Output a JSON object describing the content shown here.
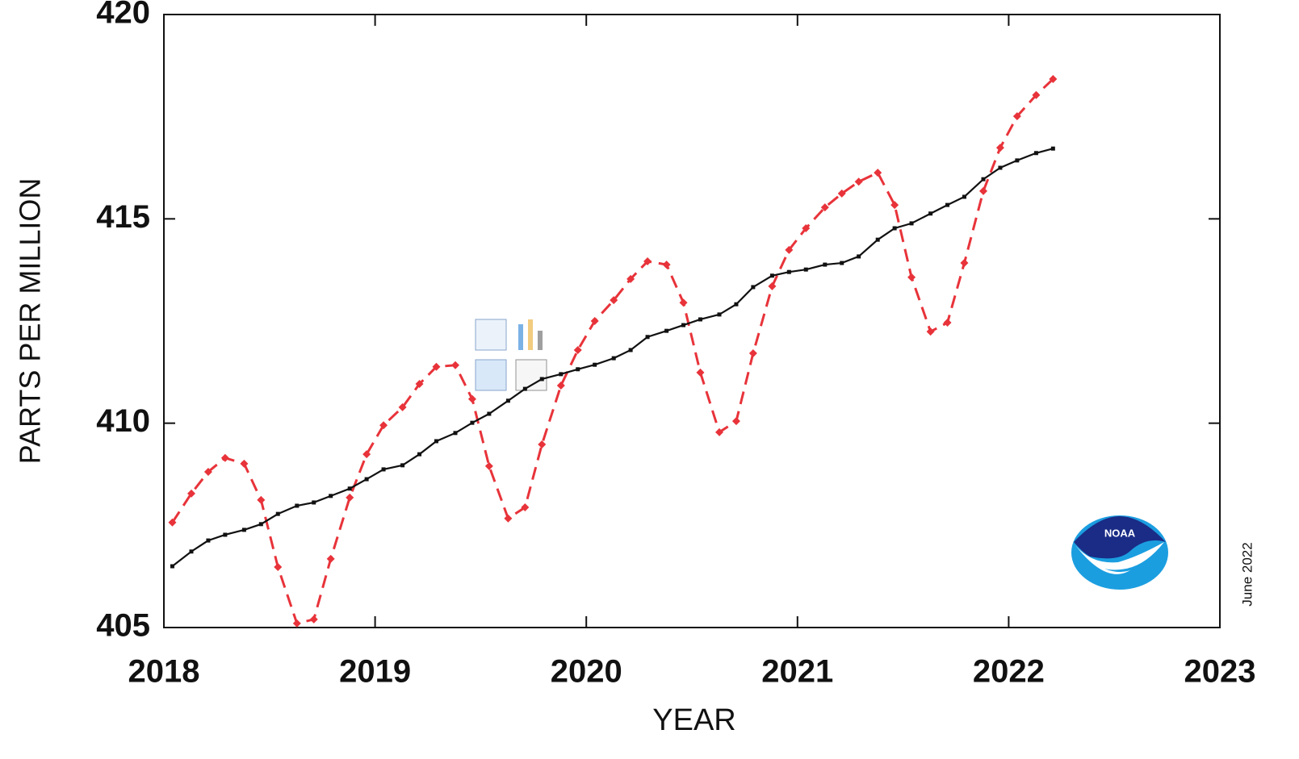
{
  "chart_data": {
    "type": "line",
    "xlabel": "YEAR",
    "ylabel": "PARTS PER MILLION",
    "note": "June 2022",
    "logo": "NOAA",
    "xlim": [
      2018,
      2023
    ],
    "xticks": [
      2018,
      2019,
      2020,
      2021,
      2022,
      2023
    ],
    "ylim": [
      405,
      420
    ],
    "yticks": [
      405,
      410,
      415,
      420
    ],
    "x": [
      2018.04,
      2018.13,
      2018.21,
      2018.29,
      2018.38,
      2018.46,
      2018.54,
      2018.63,
      2018.71,
      2018.79,
      2018.88,
      2018.96,
      2019.04,
      2019.13,
      2019.21,
      2019.29,
      2019.38,
      2019.46,
      2019.54,
      2019.63,
      2019.71,
      2019.79,
      2019.88,
      2019.96,
      2020.04,
      2020.13,
      2020.21,
      2020.29,
      2020.38,
      2020.46,
      2020.54,
      2020.63,
      2020.71,
      2020.79,
      2020.88,
      2020.96,
      2021.04,
      2021.13,
      2021.21,
      2021.29,
      2021.38,
      2021.46,
      2021.54,
      2021.63,
      2021.71,
      2021.79,
      2021.88,
      2021.96,
      2022.04,
      2022.13,
      2022.21
    ],
    "series": [
      {
        "color": "#e8333a",
        "line_style": "dashed",
        "marker": "diamond",
        "values": [
          407.57,
          408.28,
          408.81,
          409.15,
          409.01,
          408.12,
          406.48,
          405.1,
          405.2,
          406.68,
          408.18,
          409.24,
          409.95,
          410.39,
          410.96,
          411.38,
          411.42,
          410.59,
          408.95,
          407.67,
          407.94,
          409.48,
          410.92,
          411.79,
          412.5,
          413.01,
          413.53,
          413.96,
          413.88,
          412.95,
          411.24,
          409.78,
          410.05,
          411.71,
          413.35,
          414.24,
          414.77,
          415.28,
          415.62,
          415.91,
          416.13,
          415.34,
          413.57,
          412.24,
          412.46,
          413.92,
          415.68,
          416.74,
          417.51,
          418.03,
          418.42
        ]
      },
      {
        "color": "#111111",
        "line_style": "solid",
        "marker": "square",
        "values": [
          406.5,
          406.86,
          407.13,
          407.27,
          407.39,
          407.53,
          407.78,
          407.98,
          408.06,
          408.22,
          408.4,
          408.63,
          408.87,
          408.97,
          409.24,
          409.56,
          409.76,
          410.01,
          410.23,
          410.55,
          410.84,
          411.08,
          411.2,
          411.32,
          411.43,
          411.59,
          411.79,
          412.11,
          412.26,
          412.4,
          412.54,
          412.66,
          412.91,
          413.33,
          413.61,
          413.7,
          413.76,
          413.88,
          413.92,
          414.08,
          414.49,
          414.77,
          414.89,
          415.13,
          415.34,
          415.54,
          415.97,
          416.25,
          416.43,
          416.61,
          416.72
        ]
      }
    ]
  }
}
